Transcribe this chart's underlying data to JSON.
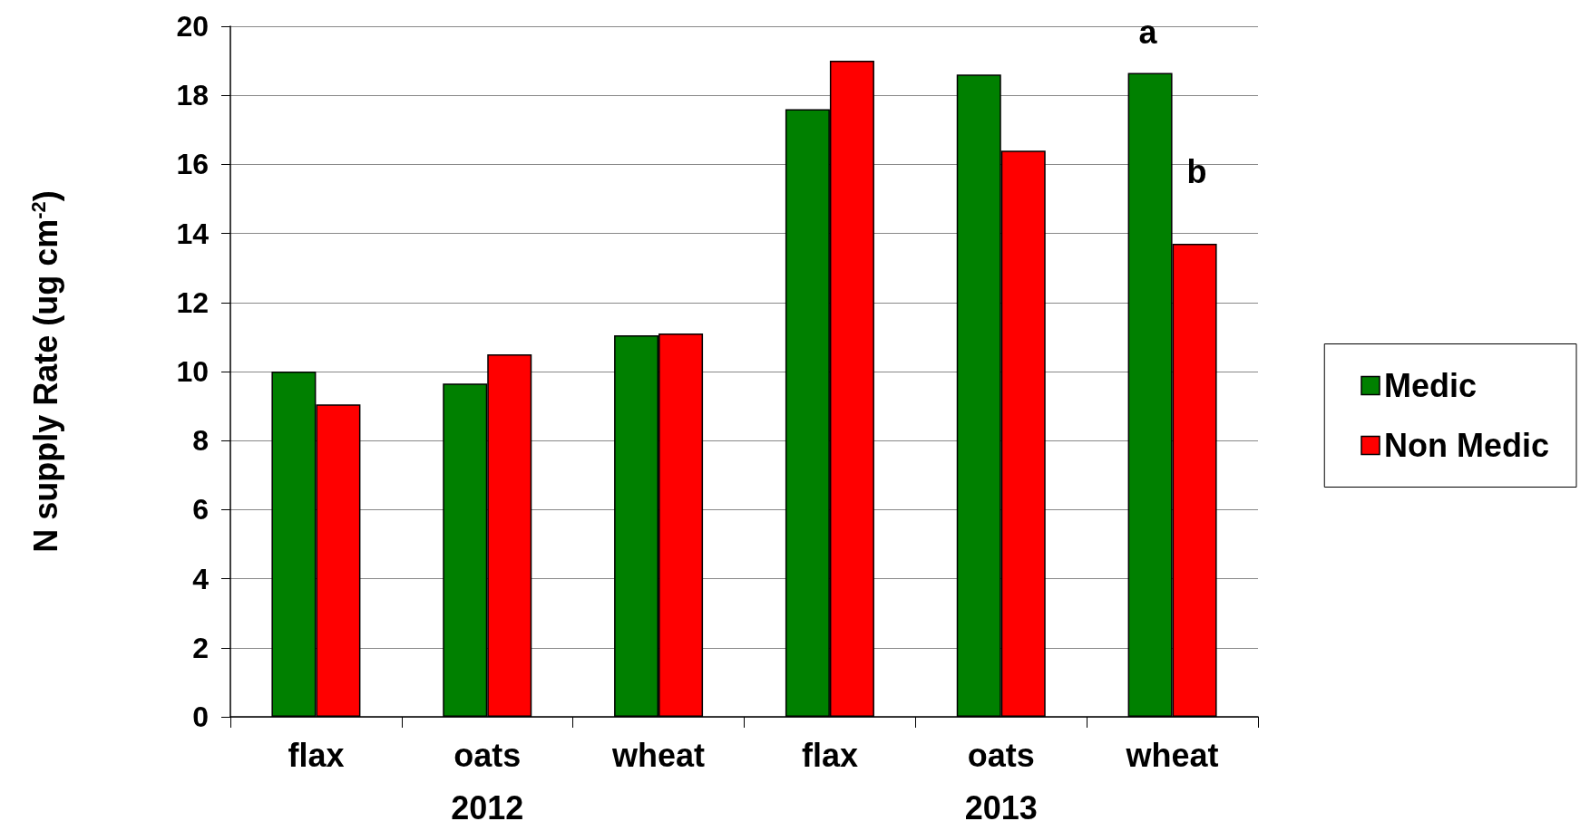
{
  "chart_data": {
    "type": "bar",
    "ylabel": "N supply Rate (ug cm$^{-2}$)",
    "categories": [
      "flax",
      "oats",
      "wheat",
      "flax",
      "oats",
      "wheat"
    ],
    "series": [
      {
        "name": "Medic",
        "color": "#008000",
        "values": [
          10.0,
          9.65,
          11.05,
          17.6,
          18.6,
          18.65
        ]
      },
      {
        "name": "Non Medic",
        "color": "#ff0000",
        "values": [
          9.05,
          10.5,
          11.1,
          19.0,
          16.4,
          13.7
        ]
      }
    ],
    "ylim": [
      0,
      20
    ],
    "yticks": [
      0,
      2,
      4,
      6,
      8,
      10,
      12,
      14,
      16,
      18,
      20
    ],
    "grid": "y",
    "legend": "right",
    "annotations": [
      "2012",
      "2013",
      "a",
      "b"
    ]
  }
}
